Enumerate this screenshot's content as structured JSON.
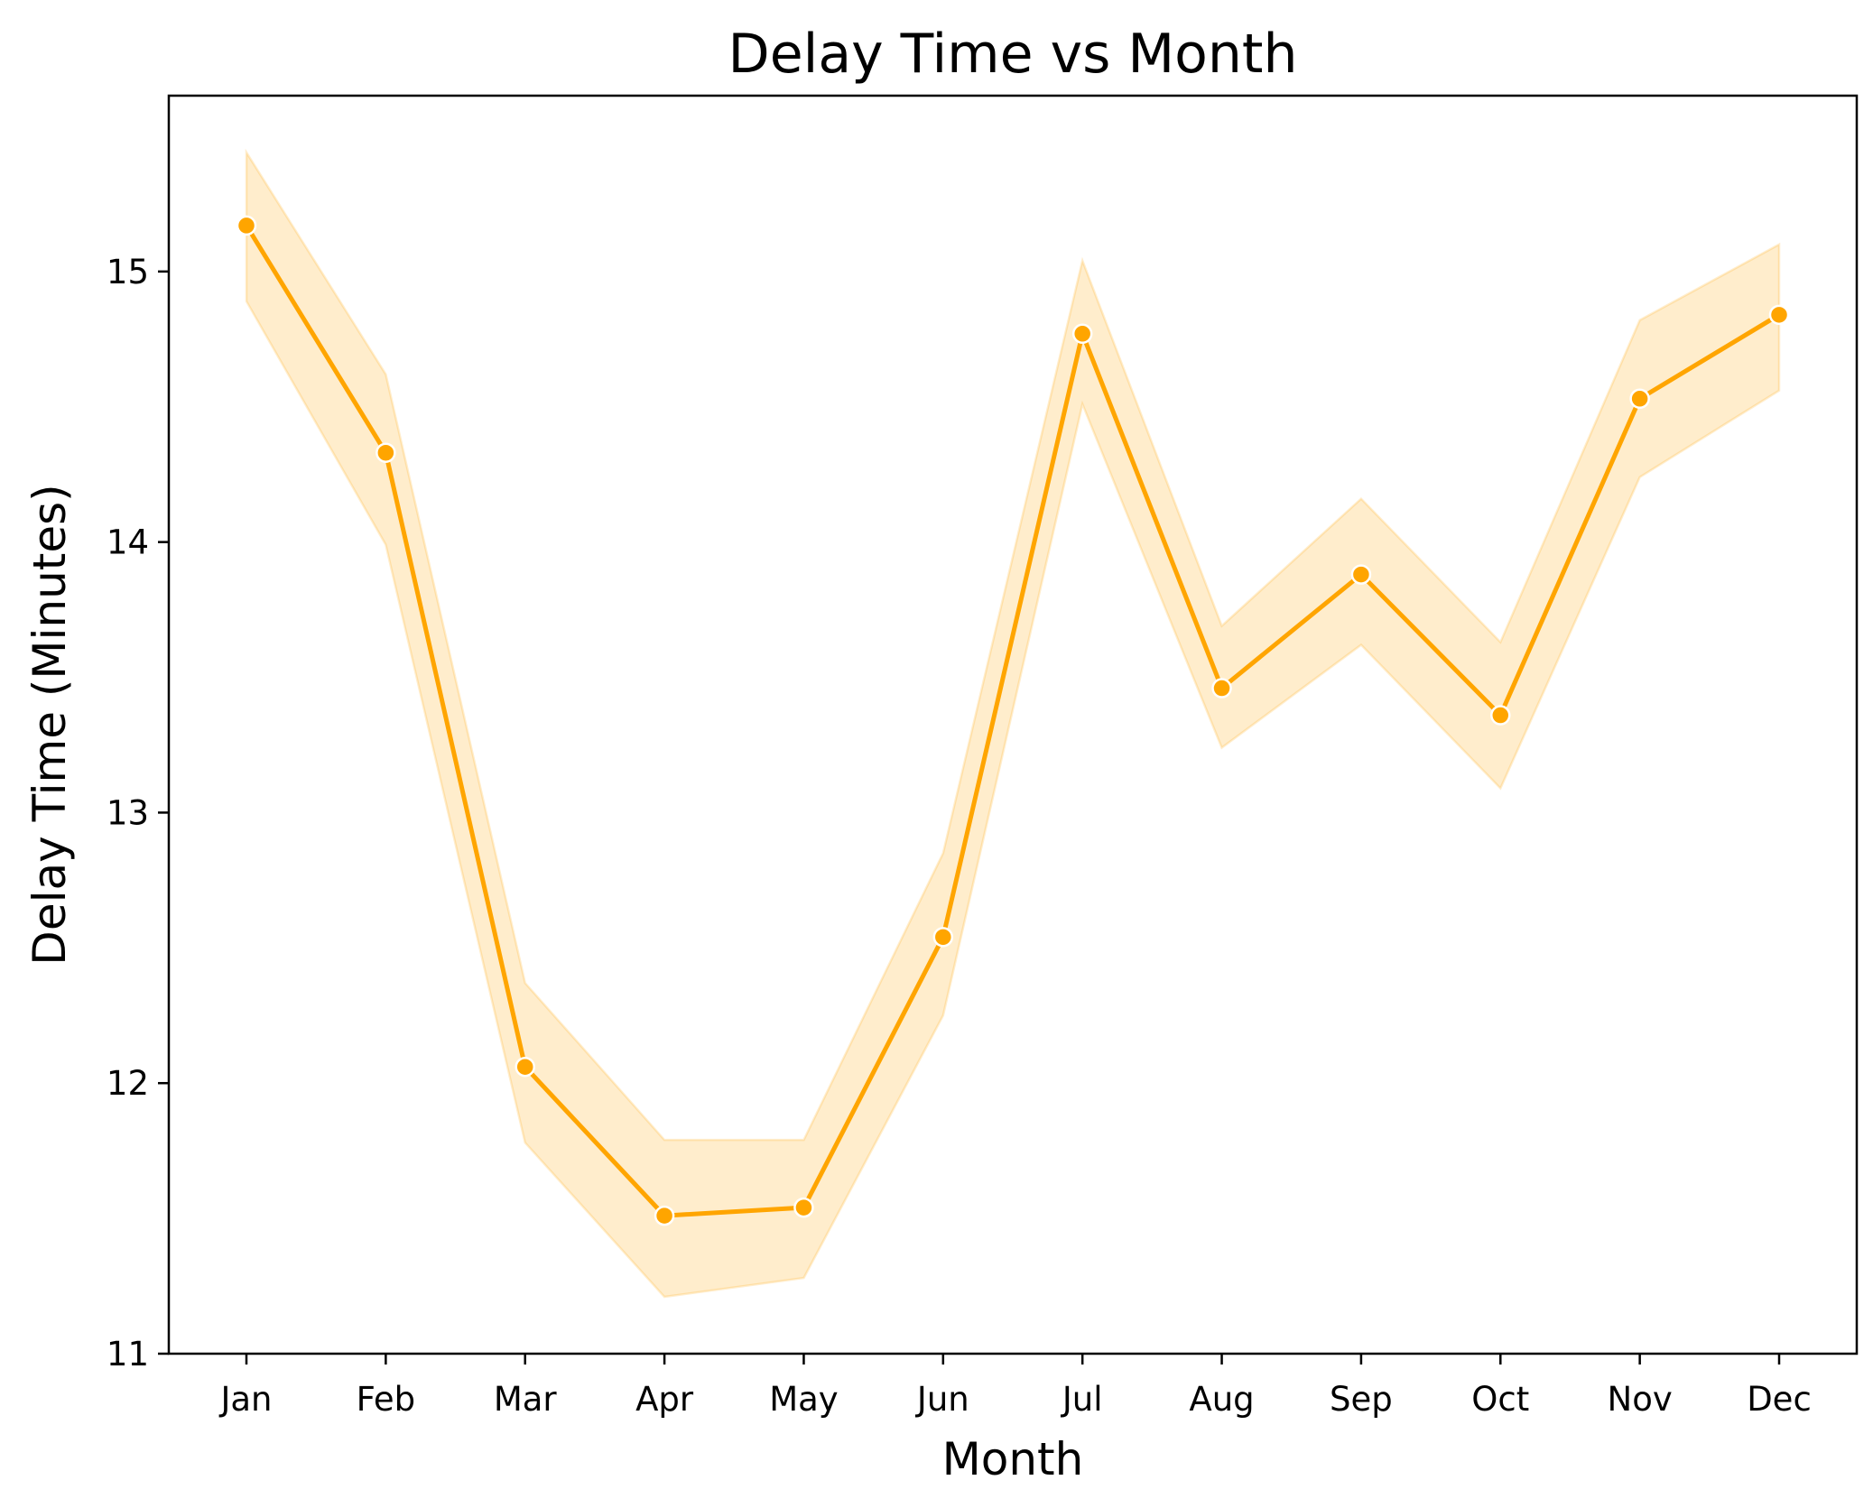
{
  "chart_data": {
    "type": "line",
    "title": "Delay Time vs Month",
    "xlabel": "Month",
    "ylabel": "Delay Time (Minutes)",
    "categories": [
      "Jan",
      "Feb",
      "Mar",
      "Apr",
      "May",
      "Jun",
      "Jul",
      "Aug",
      "Sep",
      "Oct",
      "Nov",
      "Dec"
    ],
    "series": [
      {
        "values": [
          15.17,
          14.33,
          12.06,
          11.51,
          11.54,
          12.54,
          14.77,
          13.46,
          13.88,
          13.36,
          14.53,
          14.84
        ],
        "ci_upper": [
          15.44,
          14.62,
          12.37,
          11.79,
          11.79,
          12.85,
          15.04,
          13.69,
          14.16,
          13.63,
          14.82,
          15.1
        ],
        "ci_lower": [
          14.89,
          13.99,
          11.78,
          11.21,
          11.28,
          12.25,
          14.51,
          13.24,
          13.62,
          13.09,
          14.24,
          14.56
        ],
        "color": "#FFA500",
        "band_color": "#FFA500"
      }
    ],
    "yticks": [
      11,
      12,
      13,
      14,
      15
    ],
    "ylim": [
      11,
      15.65
    ],
    "grid": false,
    "legend": "none"
  }
}
